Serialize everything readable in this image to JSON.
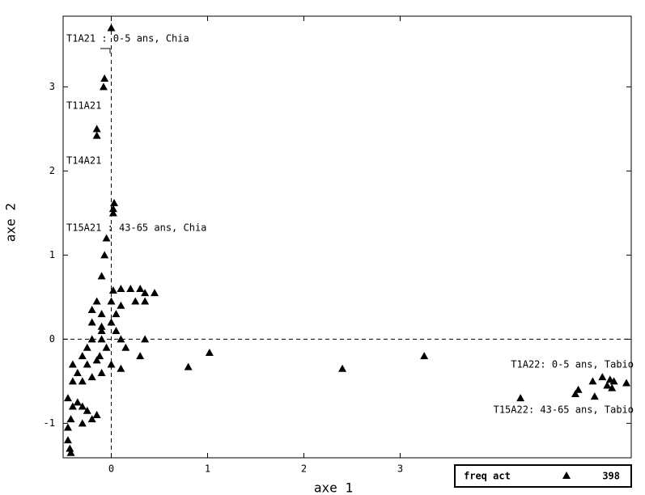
{
  "chart_data": {
    "type": "scatter",
    "x_label": "axe 1",
    "y_label": "axe 2",
    "xlim": [
      -0.5,
      5.4
    ],
    "ylim": [
      -1.41,
      3.84
    ],
    "xticks": [
      0,
      1,
      2,
      3
    ],
    "yticks": [
      -1,
      0,
      1,
      2,
      3
    ],
    "zero_lines": true,
    "color": "#000000",
    "marker": "triangle",
    "legend": {
      "label": "freq act",
      "count": 398,
      "position": "lower right"
    },
    "annotations": [
      "T1A21 : 0-5 ans, Chia",
      "T11A21",
      "T14A21",
      "T15A21 : 43-65 ans, Chia",
      "T1A22: 0-5 ans, Tabio",
      "T15A22: 43-65 ans, Tabio"
    ],
    "x": [
      0,
      -0.07,
      -0.08,
      -0.15,
      -0.15,
      0.03,
      0.02,
      0.02,
      -0.05,
      -0.07,
      -0.1,
      0.02,
      0.1,
      0.2,
      0.3,
      0.35,
      0.45,
      0.35,
      0.25,
      0.1,
      -0.15,
      -0.2,
      -0.1,
      0.0,
      -0.2,
      -0.1,
      0.1,
      0.35,
      0.15,
      0.3,
      -0.25,
      -0.3,
      -0.4,
      -0.35,
      -0.4,
      -0.3,
      -0.2,
      -0.1,
      0.1,
      -0.45,
      -0.4,
      -0.35,
      -0.3,
      -0.25,
      -0.42,
      -0.45,
      -0.3,
      -0.2,
      -0.15,
      -0.45,
      -0.43,
      -0.42,
      -0.1,
      -0.05,
      -0.12,
      0.0,
      0.8,
      1.02,
      2.4,
      3.25,
      4.25,
      4.85,
      4.82,
      5.0,
      5.1,
      5.18,
      5.22,
      5.15,
      5.2,
      5.35,
      5.02,
      -0.2,
      -0.15,
      -0.1,
      0.05,
      -0.25,
      0.0,
      0.05
    ],
    "y": [
      3.7,
      3.1,
      3.0,
      2.5,
      2.42,
      1.62,
      1.55,
      1.5,
      1.2,
      1.0,
      0.75,
      0.58,
      0.6,
      0.6,
      0.6,
      0.55,
      0.55,
      0.45,
      0.45,
      0.4,
      0.45,
      0.35,
      0.3,
      0.2,
      0.2,
      0.1,
      0.0,
      0.0,
      -0.1,
      -0.2,
      -0.1,
      -0.2,
      -0.3,
      -0.4,
      -0.5,
      -0.5,
      -0.45,
      -0.4,
      -0.35,
      -0.7,
      -0.8,
      -0.75,
      -0.8,
      -0.85,
      -0.95,
      -1.05,
      -1.0,
      -0.95,
      -0.9,
      -1.2,
      -1.3,
      -1.35,
      0.0,
      -0.1,
      -0.2,
      -0.3,
      -0.33,
      -0.16,
      -0.35,
      -0.2,
      -0.7,
      -0.6,
      -0.65,
      -0.5,
      -0.45,
      -0.48,
      -0.5,
      -0.55,
      -0.58,
      -0.52,
      -0.68,
      0.0,
      -0.25,
      0.15,
      0.3,
      -0.3,
      0.45,
      0.1
    ]
  }
}
